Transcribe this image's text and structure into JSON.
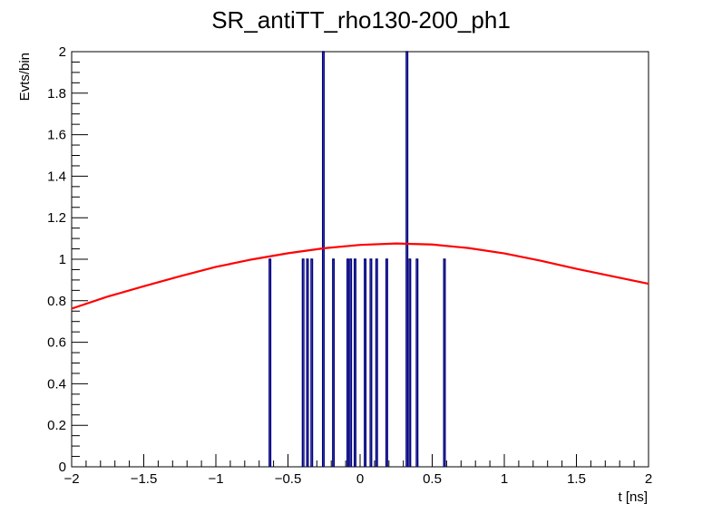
{
  "chart_data": {
    "type": "histogram",
    "title": "SR_antiTT_rho130-200_ph1",
    "xlabel": "t [ns]",
    "ylabel": "Evts/bin",
    "xlim": [
      -2,
      2
    ],
    "ylim": [
      0,
      2
    ],
    "x_ticks": [
      "−2",
      "−1.5",
      "−1",
      "−0.5",
      "0",
      "0.5",
      "1",
      "1.5",
      "2"
    ],
    "y_ticks": [
      "0",
      "0.2",
      "0.4",
      "0.6",
      "0.8",
      "1",
      "1.2",
      "1.4",
      "1.6",
      "1.8",
      "2"
    ],
    "bin_width": 0.01,
    "histogram": {
      "color": "#000080",
      "bins": [
        {
          "x": -0.63,
          "count": 1
        },
        {
          "x": -0.4,
          "count": 1
        },
        {
          "x": -0.37,
          "count": 1
        },
        {
          "x": -0.34,
          "count": 1
        },
        {
          "x": -0.26,
          "count": 2
        },
        {
          "x": -0.19,
          "count": 1
        },
        {
          "x": -0.09,
          "count": 1
        },
        {
          "x": -0.07,
          "count": 1
        },
        {
          "x": -0.04,
          "count": 1
        },
        {
          "x": 0.03,
          "count": 1
        },
        {
          "x": 0.07,
          "count": 1
        },
        {
          "x": 0.11,
          "count": 1
        },
        {
          "x": 0.18,
          "count": 1
        },
        {
          "x": 0.32,
          "count": 2
        },
        {
          "x": 0.34,
          "count": 1
        },
        {
          "x": 0.39,
          "count": 1
        },
        {
          "x": 0.58,
          "count": 1
        }
      ]
    },
    "fit_curve": {
      "color": "#ff0000",
      "points": [
        [
          -2.0,
          0.762
        ],
        [
          -1.75,
          0.82
        ],
        [
          -1.5,
          0.87
        ],
        [
          -1.25,
          0.918
        ],
        [
          -1.0,
          0.963
        ],
        [
          -0.75,
          0.999
        ],
        [
          -0.5,
          1.029
        ],
        [
          -0.25,
          1.053
        ],
        [
          0.0,
          1.069
        ],
        [
          0.25,
          1.076
        ],
        [
          0.5,
          1.071
        ],
        [
          0.75,
          1.054
        ],
        [
          1.0,
          1.028
        ],
        [
          1.25,
          0.993
        ],
        [
          1.5,
          0.954
        ],
        [
          1.75,
          0.918
        ],
        [
          2.0,
          0.882
        ]
      ]
    },
    "grid": false,
    "legend": "none"
  }
}
